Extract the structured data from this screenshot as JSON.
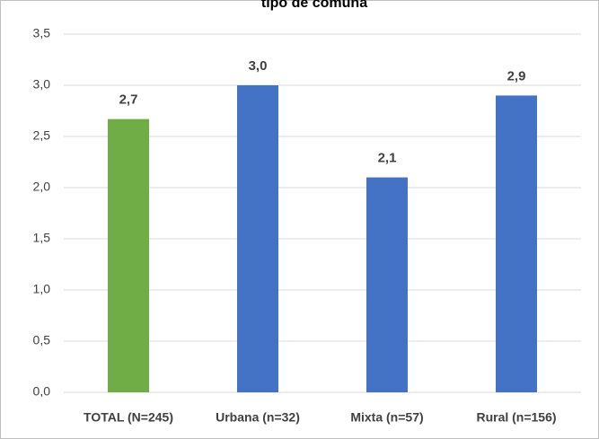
{
  "chart_data": {
    "type": "bar",
    "title": "tipo de comuna",
    "categories": [
      "TOTAL (N=245)",
      "Urbana (n=32)",
      "Mixta (n=57)",
      "Rural (n=156)"
    ],
    "values": [
      2.67,
      3.0,
      2.1,
      2.9
    ],
    "value_labels": [
      "2,7",
      "3,0",
      "2,1",
      "2,9"
    ],
    "colors": [
      "#70ad47",
      "#4472c4",
      "#4472c4",
      "#4472c4"
    ],
    "ylim": [
      0,
      3.5
    ],
    "yticks": [
      {
        "value": 0,
        "label": "0,0"
      },
      {
        "value": 0.5,
        "label": "0,5"
      },
      {
        "value": 1,
        "label": "1,0"
      },
      {
        "value": 1.5,
        "label": "1,5"
      },
      {
        "value": 2,
        "label": "2,0"
      },
      {
        "value": 2.5,
        "label": "2,5"
      },
      {
        "value": 3,
        "label": "3,0"
      },
      {
        "value": 3.5,
        "label": "3,5"
      }
    ],
    "grid": true
  }
}
